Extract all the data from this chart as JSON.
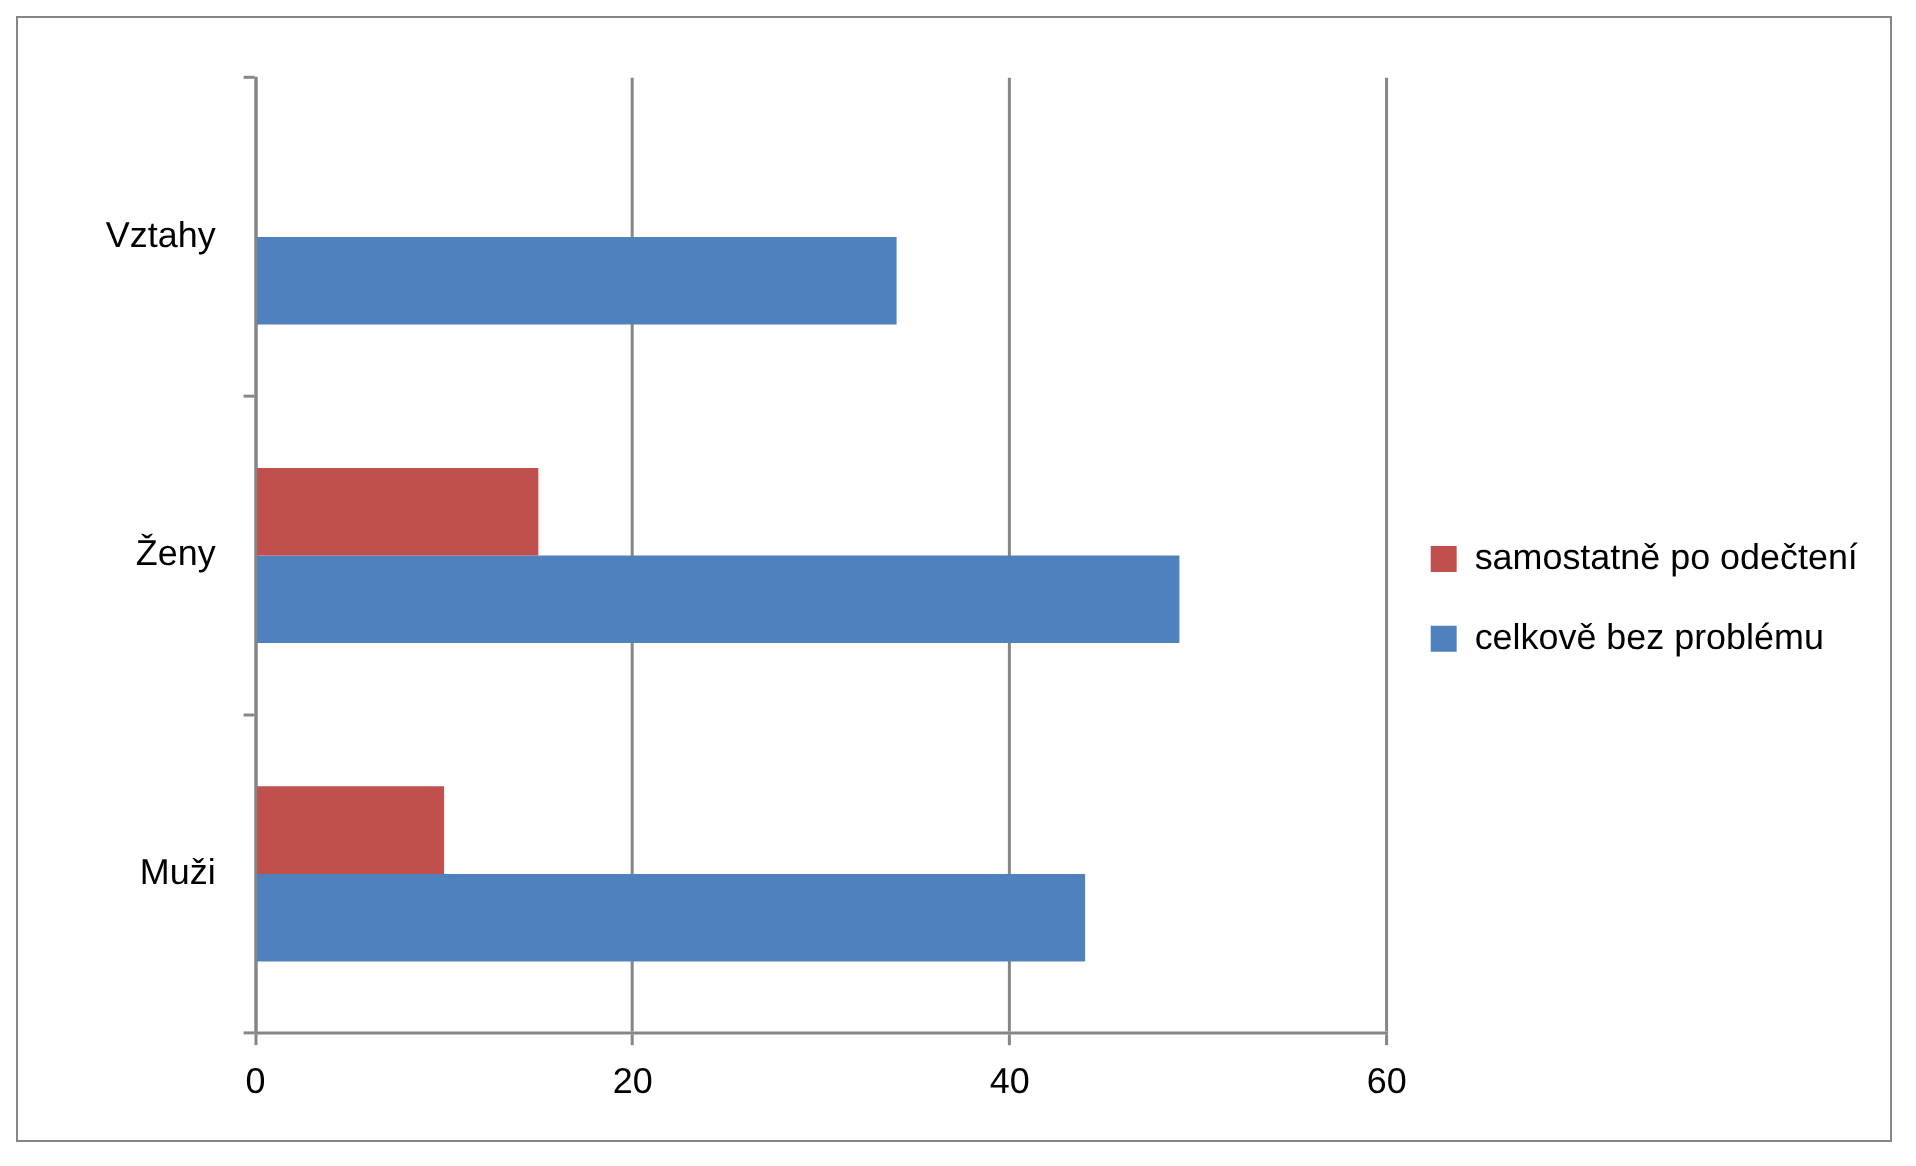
{
  "chart_data": {
    "type": "bar",
    "orientation": "horizontal",
    "categories": [
      "Vztahy",
      "Ženy",
      "Muži"
    ],
    "series": [
      {
        "name": "samostatně po odečtení",
        "color": "#c0504d",
        "values": [
          null,
          15,
          10
        ]
      },
      {
        "name": "celkově bez problému",
        "color": "#4f81bd",
        "values": [
          34,
          49,
          44
        ]
      }
    ],
    "xlim": [
      0,
      60
    ],
    "xticks": [
      0,
      20,
      40,
      60
    ],
    "grid": "x",
    "legend": "right"
  }
}
